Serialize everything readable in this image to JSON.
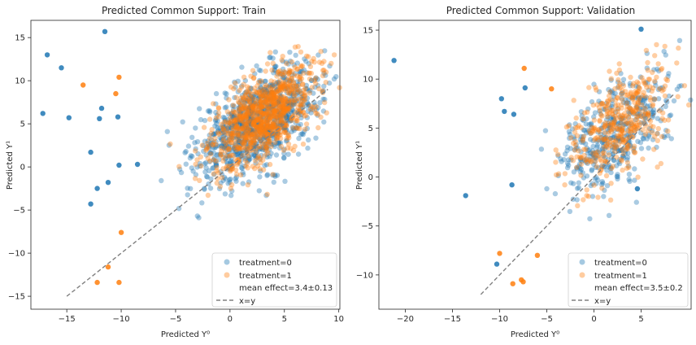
{
  "chart_data": [
    {
      "type": "scatter",
      "title": "Predicted Common Support: Train",
      "xlabel": "Predicted Y⁰",
      "ylabel": "Predicted Y¹",
      "xlim": [
        -18.3,
        10.1
      ],
      "ylim": [
        -16.5,
        17.0
      ],
      "xticks": [
        -15,
        -10,
        -5,
        0,
        5,
        10
      ],
      "yticks": [
        -15,
        -10,
        -5,
        0,
        5,
        10,
        15
      ],
      "xtick_labels": [
        "−15",
        "−10",
        "−5",
        "0",
        "5",
        "10"
      ],
      "ytick_labels": [
        "−15",
        "−10",
        "−5",
        "0",
        "5",
        "10",
        "15"
      ],
      "legend": {
        "position": "lower-right",
        "entries": [
          "treatment=0",
          "treatment=1",
          "mean effect=3.4±0.13",
          "x=y"
        ]
      },
      "reference_line": {
        "name": "x=y",
        "from": [
          -15,
          -15
        ],
        "to": [
          9,
          9
        ],
        "style": "dashed",
        "color": "#808080"
      },
      "series": [
        {
          "name": "treatment=0",
          "color": "#1f77b4",
          "cluster": {
            "center": [
              2.6,
              5.2
            ],
            "count": 950,
            "spread": [
              2.8,
              3.2
            ],
            "corr": 0.55
          },
          "outliers": [
            [
              -16.8,
              13
            ],
            [
              -17.2,
              6.2
            ],
            [
              -15.5,
              11.5
            ],
            [
              -14.8,
              5.7
            ],
            [
              -12.8,
              1.7
            ],
            [
              -12.2,
              -2.5
            ],
            [
              -12.8,
              -4.3
            ],
            [
              -11.5,
              15.7
            ],
            [
              -11.8,
              6.8
            ],
            [
              -12.0,
              5.6
            ],
            [
              -10.3,
              5.8
            ],
            [
              -10.2,
              0.2
            ],
            [
              -8.5,
              0.3
            ],
            [
              -11.2,
              -1.8
            ]
          ]
        },
        {
          "name": "treatment=1",
          "color": "#ff7f0e",
          "cluster": {
            "center": [
              3.0,
              5.8
            ],
            "count": 900,
            "spread": [
              2.4,
              2.8
            ],
            "corr": 0.55
          },
          "outliers": [
            [
              -13.5,
              9.5
            ],
            [
              -10.2,
              10.4
            ],
            [
              -11.2,
              -11.6
            ],
            [
              -12.2,
              -13.4
            ],
            [
              -10.2,
              -13.4
            ],
            [
              -10.0,
              -7.6
            ],
            [
              -10.5,
              8.5
            ]
          ]
        }
      ]
    },
    {
      "type": "scatter",
      "title": "Predicted Common Support: Validation",
      "xlabel": "Predicted Y⁰",
      "ylabel": "Predicted Y¹",
      "xlim": [
        -22.8,
        10.3
      ],
      "ylim": [
        -13.5,
        16.0
      ],
      "xticks": [
        -20,
        -15,
        -10,
        -5,
        0,
        5
      ],
      "yticks": [
        -10,
        -5,
        0,
        5,
        10,
        15
      ],
      "xtick_labels": [
        "−20",
        "−15",
        "−10",
        "−5",
        "0",
        "5"
      ],
      "ytick_labels": [
        "−10",
        "−5",
        "0",
        "5",
        "10",
        "15"
      ],
      "legend": {
        "position": "lower-right",
        "entries": [
          "treatment=0",
          "treatment=1",
          "mean effect=3.5±0.2",
          "x=y"
        ]
      },
      "reference_line": {
        "name": "x=y",
        "from": [
          -12,
          -12
        ],
        "to": [
          8.5,
          8.5
        ],
        "style": "dashed",
        "color": "#808080"
      },
      "series": [
        {
          "name": "treatment=0",
          "color": "#1f77b4",
          "cluster": {
            "center": [
              2.4,
              4.6
            ],
            "count": 420,
            "spread": [
              2.9,
              3.0
            ],
            "corr": 0.55
          },
          "outliers": [
            [
              -21.2,
              11.9
            ],
            [
              -13.6,
              -1.9
            ],
            [
              -7.3,
              9.1
            ],
            [
              -9.8,
              8.0
            ],
            [
              -9.5,
              6.7
            ],
            [
              -8.5,
              6.4
            ],
            [
              -8.7,
              -0.8
            ],
            [
              -10.3,
              -8.9
            ],
            [
              4.6,
              -1.2
            ],
            [
              5.0,
              15.1
            ]
          ]
        },
        {
          "name": "treatment=1",
          "color": "#ff7f0e",
          "cluster": {
            "center": [
              2.6,
              5.2
            ],
            "count": 400,
            "spread": [
              2.7,
              2.9
            ],
            "corr": 0.55
          },
          "outliers": [
            [
              -7.4,
              11.1
            ],
            [
              -4.5,
              9.0
            ],
            [
              -10.0,
              -7.8
            ],
            [
              -8.6,
              -10.9
            ],
            [
              -7.7,
              -10.5
            ],
            [
              -7.5,
              -10.7
            ],
            [
              -6.0,
              -8.0
            ]
          ]
        }
      ]
    }
  ]
}
